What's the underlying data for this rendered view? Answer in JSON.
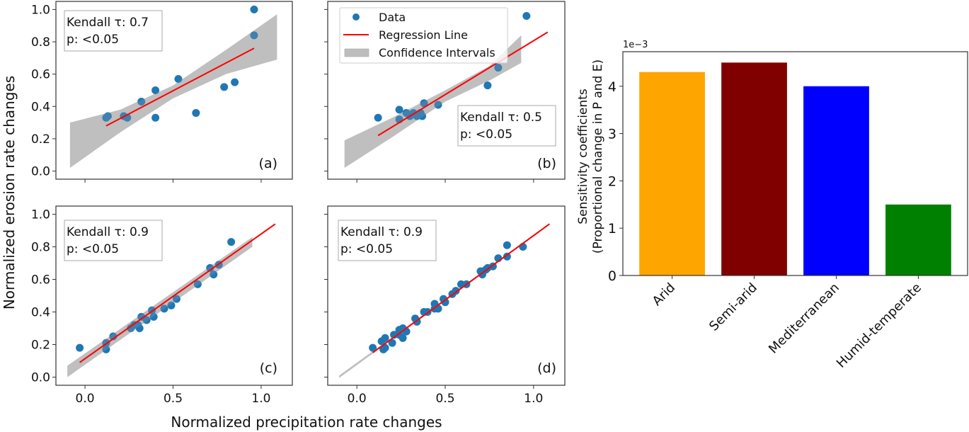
{
  "figure": {
    "shared_ylabel": "Normalized erosion rate changes",
    "shared_xlabel": "Normalized precipitation rate changes"
  },
  "legend": {
    "placement": "panel-b-upper-left",
    "entries": [
      {
        "label": "Data",
        "kind": "marker",
        "color": "#1f77b4"
      },
      {
        "label": "Regression Line",
        "kind": "line",
        "color": "#ff0000"
      },
      {
        "label": "Confidence Intervals",
        "kind": "patch",
        "color": "#bdbdbd"
      }
    ]
  },
  "chart_data": [
    {
      "type": "scatter",
      "panel": "a",
      "panel_label": "(a)",
      "stats_lines": [
        "Kendall τ: 0.7",
        "p: <0.05"
      ],
      "stats_placement": "top-left",
      "xlim": [
        -0.165,
        1.177
      ],
      "ylim": [
        -0.05,
        1.05
      ],
      "xticks": [
        0.0,
        0.5,
        1.0
      ],
      "xtick_labels_visible": false,
      "yticks": [
        0.0,
        0.2,
        0.4,
        0.6,
        0.8,
        1.0
      ],
      "ytick_labels": [
        "0.0",
        "0.2",
        "0.4",
        "0.6",
        "0.8",
        "1.0"
      ],
      "ytick_labels_visible": true,
      "points": [
        [
          0.12,
          0.33
        ],
        [
          0.13,
          0.34
        ],
        [
          0.22,
          0.34
        ],
        [
          0.24,
          0.33
        ],
        [
          0.32,
          0.43
        ],
        [
          0.4,
          0.5
        ],
        [
          0.4,
          0.33
        ],
        [
          0.53,
          0.57
        ],
        [
          0.63,
          0.36
        ],
        [
          0.79,
          0.52
        ],
        [
          0.85,
          0.55
        ],
        [
          0.96,
          0.84
        ],
        [
          0.96,
          1.0
        ]
      ],
      "regression": [
        [
          0.12,
          0.28
        ],
        [
          0.96,
          0.76
        ]
      ],
      "ci_upper": [
        [
          -0.085,
          0.3
        ],
        [
          0.2,
          0.38
        ],
        [
          0.5,
          0.53
        ],
        [
          0.8,
          0.75
        ],
        [
          1.09,
          0.97
        ]
      ],
      "ci_lower": [
        [
          -0.085,
          0.02
        ],
        [
          0.2,
          0.24
        ],
        [
          0.5,
          0.45
        ],
        [
          0.8,
          0.6
        ],
        [
          1.09,
          0.69
        ]
      ]
    },
    {
      "type": "scatter",
      "panel": "b",
      "panel_label": "(b)",
      "stats_lines": [
        "Kendall τ: 0.5",
        "p: <0.05"
      ],
      "stats_placement": "center-right",
      "xlim": [
        -0.165,
        1.177
      ],
      "ylim": [
        -0.05,
        1.05
      ],
      "xticks": [
        0.0,
        0.5,
        1.0
      ],
      "xtick_labels_visible": false,
      "yticks": [
        0.0,
        0.2,
        0.4,
        0.6,
        0.8,
        1.0
      ],
      "ytick_labels": [
        "0.0",
        "0.2",
        "0.4",
        "0.6",
        "0.8",
        "1.0"
      ],
      "ytick_labels_visible": false,
      "points": [
        [
          0.12,
          0.33
        ],
        [
          0.24,
          0.38
        ],
        [
          0.24,
          0.32
        ],
        [
          0.28,
          0.36
        ],
        [
          0.3,
          0.34
        ],
        [
          0.32,
          0.36
        ],
        [
          0.34,
          0.34
        ],
        [
          0.36,
          0.36
        ],
        [
          0.37,
          0.34
        ],
        [
          0.38,
          0.42
        ],
        [
          0.46,
          0.41
        ],
        [
          0.74,
          0.53
        ],
        [
          0.8,
          0.64
        ],
        [
          0.96,
          0.96
        ]
      ],
      "regression": [
        [
          0.12,
          0.22
        ],
        [
          1.08,
          0.86
        ]
      ],
      "ci_upper": [
        [
          -0.07,
          0.19
        ],
        [
          0.2,
          0.33
        ],
        [
          0.5,
          0.5
        ],
        [
          0.75,
          0.65
        ],
        [
          0.93,
          0.84
        ]
      ],
      "ci_lower": [
        [
          -0.07,
          0.02
        ],
        [
          0.2,
          0.21
        ],
        [
          0.5,
          0.43
        ],
        [
          0.75,
          0.56
        ],
        [
          0.93,
          0.67
        ]
      ]
    },
    {
      "type": "scatter",
      "panel": "c",
      "panel_label": "(c)",
      "stats_lines": [
        "Kendall τ: 0.9",
        "p: <0.05"
      ],
      "stats_placement": "top-left",
      "xlim": [
        -0.165,
        1.177
      ],
      "ylim": [
        -0.05,
        1.05
      ],
      "xticks": [
        0.0,
        0.5,
        1.0
      ],
      "xtick_labels": [
        "0.0",
        "0.5",
        "1.0"
      ],
      "xtick_labels_visible": true,
      "yticks": [
        0.0,
        0.2,
        0.4,
        0.6,
        0.8,
        1.0
      ],
      "ytick_labels": [
        "0.0",
        "0.2",
        "0.4",
        "0.6",
        "0.8",
        "1.0"
      ],
      "ytick_labels_visible": true,
      "points": [
        [
          -0.03,
          0.18
        ],
        [
          0.12,
          0.21
        ],
        [
          0.12,
          0.17
        ],
        [
          0.16,
          0.25
        ],
        [
          0.26,
          0.3
        ],
        [
          0.28,
          0.32
        ],
        [
          0.3,
          0.32
        ],
        [
          0.31,
          0.3
        ],
        [
          0.32,
          0.37
        ],
        [
          0.35,
          0.35
        ],
        [
          0.38,
          0.41
        ],
        [
          0.39,
          0.37
        ],
        [
          0.45,
          0.42
        ],
        [
          0.49,
          0.44
        ],
        [
          0.52,
          0.48
        ],
        [
          0.64,
          0.57
        ],
        [
          0.71,
          0.67
        ],
        [
          0.73,
          0.63
        ],
        [
          0.76,
          0.69
        ],
        [
          0.83,
          0.83
        ]
      ],
      "regression": [
        [
          -0.03,
          0.09
        ],
        [
          1.08,
          0.94
        ]
      ],
      "ci_upper": [
        [
          -0.1,
          0.07
        ],
        [
          0.95,
          0.86
        ]
      ],
      "ci_lower": [
        [
          -0.1,
          0.0
        ],
        [
          0.95,
          0.8
        ]
      ]
    },
    {
      "type": "scatter",
      "panel": "d",
      "panel_label": "(d)",
      "stats_lines": [
        "Kendall τ: 0.9",
        "p: <0.05"
      ],
      "stats_placement": "top-left",
      "xlim": [
        -0.165,
        1.177
      ],
      "ylim": [
        -0.05,
        1.05
      ],
      "xticks": [
        0.0,
        0.5,
        1.0
      ],
      "xtick_labels": [
        "0.0",
        "0.5",
        "1.0"
      ],
      "xtick_labels_visible": true,
      "yticks": [
        0.0,
        0.2,
        0.4,
        0.6,
        0.8,
        1.0
      ],
      "ytick_labels": [
        "0.0",
        "0.2",
        "0.4",
        "0.6",
        "0.8",
        "1.0"
      ],
      "ytick_labels_visible": false,
      "points": [
        [
          0.09,
          0.18
        ],
        [
          0.14,
          0.22
        ],
        [
          0.15,
          0.17
        ],
        [
          0.16,
          0.24
        ],
        [
          0.16,
          0.18
        ],
        [
          0.2,
          0.21
        ],
        [
          0.21,
          0.26
        ],
        [
          0.24,
          0.29
        ],
        [
          0.24,
          0.26
        ],
        [
          0.26,
          0.3
        ],
        [
          0.26,
          0.24
        ],
        [
          0.28,
          0.28
        ],
        [
          0.33,
          0.36
        ],
        [
          0.34,
          0.34
        ],
        [
          0.38,
          0.4
        ],
        [
          0.4,
          0.4
        ],
        [
          0.44,
          0.42
        ],
        [
          0.44,
          0.45
        ],
        [
          0.46,
          0.42
        ],
        [
          0.49,
          0.48
        ],
        [
          0.5,
          0.46
        ],
        [
          0.54,
          0.51
        ],
        [
          0.56,
          0.53
        ],
        [
          0.59,
          0.57
        ],
        [
          0.62,
          0.57
        ],
        [
          0.7,
          0.65
        ],
        [
          0.71,
          0.63
        ],
        [
          0.73,
          0.66
        ],
        [
          0.74,
          0.67
        ],
        [
          0.77,
          0.68
        ],
        [
          0.8,
          0.73
        ],
        [
          0.85,
          0.74
        ],
        [
          0.85,
          0.81
        ],
        [
          0.94,
          0.8
        ]
      ],
      "regression": [
        [
          0.09,
          0.15
        ],
        [
          1.09,
          0.94
        ]
      ],
      "ci_upper": [
        [
          -0.1,
          0.01
        ],
        [
          1.09,
          0.945
        ]
      ],
      "ci_lower": [
        [
          -0.1,
          -0.005
        ],
        [
          1.09,
          0.935
        ]
      ]
    },
    {
      "type": "bar",
      "panel": "e",
      "categories": [
        "Arid",
        "Semi-arid",
        "Mediterranean",
        "Humid-temperate"
      ],
      "values": [
        4.3,
        4.5,
        4.0,
        1.5
      ],
      "colors": [
        "#ffa500",
        "#800000",
        "#0000ff",
        "#008000"
      ],
      "value_scale": "1e-3",
      "offset_text": "1e−3",
      "title": "",
      "xlabel": "",
      "ylabel_lines": [
        "Sensitivity coefficients",
        "(Proportional change in P and E)"
      ],
      "ylim": [
        0,
        4.73
      ],
      "yticks": [
        0,
        1,
        2,
        3,
        4
      ],
      "ytick_labels": [
        "0",
        "1",
        "2",
        "3",
        "4"
      ],
      "xtick_rotation_deg": 45,
      "grid": false
    }
  ]
}
